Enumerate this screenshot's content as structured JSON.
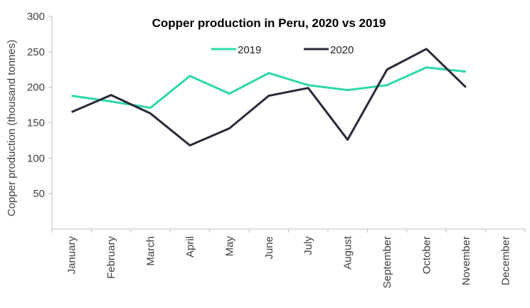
{
  "chart_data": {
    "type": "line",
    "title": "Copper production in Peru, 2020 vs 2019",
    "xlabel": "",
    "ylabel": "Copper production (thousand tonnes)",
    "ylim": [
      0,
      300
    ],
    "yticks": [
      50,
      100,
      150,
      200,
      250,
      300
    ],
    "categories": [
      "January",
      "February",
      "March",
      "April",
      "May",
      "June",
      "July",
      "August",
      "September",
      "October",
      "November",
      "December"
    ],
    "legend_position": "top-center",
    "grid": false,
    "series": [
      {
        "name": "2019",
        "color": "#2ed8a8",
        "values": [
          188,
          180,
          171,
          216,
          191,
          220,
          203,
          196,
          203,
          228,
          222,
          null
        ]
      },
      {
        "name": "2020",
        "color": "#2b2a3a",
        "values": [
          165,
          189,
          163,
          118,
          142,
          188,
          199,
          126,
          225,
          254,
          200,
          null
        ]
      }
    ]
  }
}
